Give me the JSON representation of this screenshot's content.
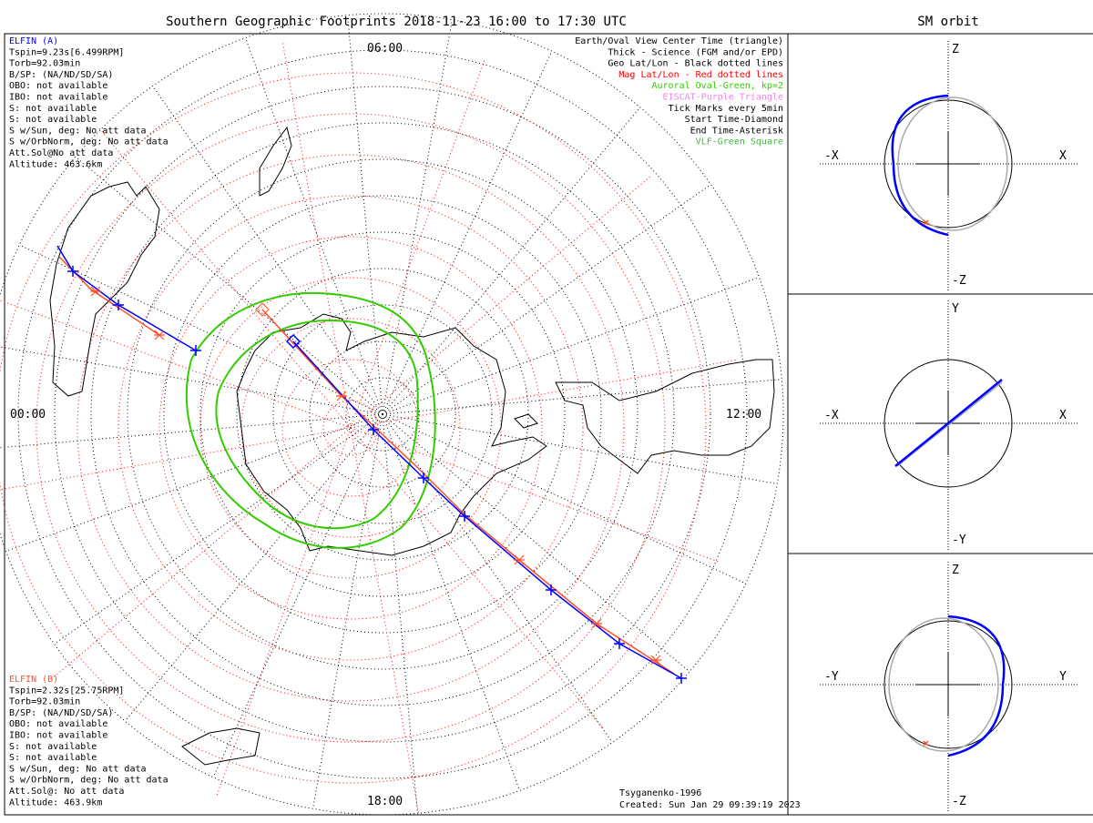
{
  "title": "Southern Geographic Footprints 2018-11-23 16:00 to 17:30 UTC",
  "orbit_title": "SM orbit",
  "colors": {
    "elfin_a": "#0000ff",
    "elfin_b": "#ff4d26",
    "mag_grid": "#ff0000",
    "aurora": "#33cc00",
    "eiscat": "#ee82ee",
    "vlf": "#44bb44",
    "sun_orbit": "#aaaaaa"
  },
  "map": {
    "time_labels": {
      "top": "06:00",
      "left": "00:00",
      "right": "12:00",
      "bottom": "18:00"
    },
    "elfin_a": {
      "name": "ELFIN (A)",
      "lines": [
        "Tspin=9.23s[6.499RPM]",
        "Torb=92.03min",
        "B/SP: (NA/ND/SD/SA)",
        "OBO: not available",
        "IBO: not available",
        "S: not available",
        "S: not available",
        "S w/Sun, deg: No att data",
        "S w/OrbNorm, deg: No att data",
        "Att.Sol@No att data",
        "Altitude: 463.6km"
      ]
    },
    "elfin_b": {
      "name": "ELFIN (B)",
      "lines": [
        "Tspin=2.32s[25.75RPM]",
        "Torb=92.03min",
        "B/SP: (NA/ND/SD/SA)",
        "OBO: not available",
        "IBO: not available",
        "S: not available",
        "S: not available",
        "S w/Sun, deg: No att data",
        "S w/OrbNorm, deg: No att data",
        "Att.Sol@: No att data",
        "Altitude: 463.9km"
      ]
    },
    "legend": [
      {
        "text": "Earth/Oval View Center Time (triangle)",
        "color": "#000000"
      },
      {
        "text": "Thick - Science (FGM and/or EPD)",
        "color": "#000000"
      },
      {
        "text": "Geo Lat/Lon - Black dotted lines",
        "color": "#000000"
      },
      {
        "text": "Mag Lat/Lon - Red dotted lines",
        "color": "#ff0000"
      },
      {
        "text": "Auroral Oval-Green, kp=2",
        "color": "#33cc00"
      },
      {
        "text": "EISCAT-Purple Triangle",
        "color": "#ee82ee"
      },
      {
        "text": "Tick Marks every 5min",
        "color": "#000000"
      },
      {
        "text": "Start Time-Diamond",
        "color": "#000000"
      },
      {
        "text": "End Time-Asterisk",
        "color": "#000000"
      },
      {
        "text": "VLF-Green Square",
        "color": "#44bb44"
      }
    ],
    "model": "Tsyganenko-1996",
    "created": "Created: Sun Jan 29 09:39:19 2023"
  },
  "panels": [
    {
      "top": "Z",
      "bottom": "-Z",
      "left": "-X",
      "right": "X"
    },
    {
      "top": "Y",
      "bottom": "-Y",
      "left": "-X",
      "right": "X"
    },
    {
      "top": "Z",
      "bottom": "-Z",
      "left": "-Y",
      "right": "Y"
    }
  ]
}
